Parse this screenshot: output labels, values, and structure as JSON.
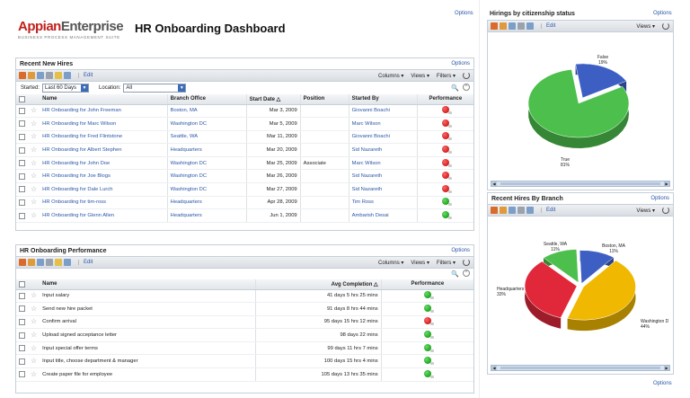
{
  "header": {
    "logo_main": "Appian",
    "logo_second": "Enterprise",
    "logo_sub": "BUSINESS PROCESS MANAGEMENT SUITE",
    "title": "HR Onboarding Dashboard",
    "options": "Options"
  },
  "hires": {
    "title": "Recent New Hires",
    "options": "Options",
    "edit": "Edit",
    "columns": "Columns ▾",
    "views": "Views ▾",
    "filters": "Filters ▾",
    "started_label": "Started:",
    "started_value": "Last 60 Days",
    "location_label": "Location:",
    "location_value": "All",
    "headers": [
      "Name",
      "Branch Office",
      "Start Date △",
      "Position",
      "Started By",
      "Performance"
    ],
    "rows": [
      {
        "name": "HR Onboarding for John Freeman",
        "office": "Boston, MA",
        "date": "Mar 3, 2009",
        "position": "",
        "by": "Giovanni Boachi",
        "perf": "red"
      },
      {
        "name": "HR Onboarding for Marc Wilson",
        "office": "Washington DC",
        "date": "Mar 5, 2009",
        "position": "",
        "by": "Marc Wilson",
        "perf": "red"
      },
      {
        "name": "HR Onboarding for Fred Flintstone",
        "office": "Seattle, WA",
        "date": "Mar 11, 2009",
        "position": "",
        "by": "Giovanni Boachi",
        "perf": "red"
      },
      {
        "name": "HR Onboarding for Albert Stephen",
        "office": "Headquarters",
        "date": "Mar 20, 2009",
        "position": "",
        "by": "Sid Nazareth",
        "perf": "red"
      },
      {
        "name": "HR Onboarding for John Doe",
        "office": "Washington DC",
        "date": "Mar 25, 2009",
        "position": "Associate",
        "by": "Marc Wilson",
        "perf": "red"
      },
      {
        "name": "HR Onboarding for Joe Blogs",
        "office": "Washington DC",
        "date": "Mar 26, 2009",
        "position": "",
        "by": "Sid Nazareth",
        "perf": "red"
      },
      {
        "name": "HR Onboarding for Dale Lurch",
        "office": "Washington DC",
        "date": "Mar 27, 2009",
        "position": "",
        "by": "Sid Nazareth",
        "perf": "red"
      },
      {
        "name": "HR Onboarding for tim-ross",
        "office": "Headquarters",
        "date": "Apr 28, 2009",
        "position": "",
        "by": "Tim Ross",
        "perf": "green"
      },
      {
        "name": "HR Onboarding for Glenn Allen",
        "office": "Headquarters",
        "date": "Jun 1, 2009",
        "position": "",
        "by": "Ambarish Desai",
        "perf": "green"
      }
    ]
  },
  "perf": {
    "title": "HR Onboarding Performance",
    "options": "Options",
    "edit": "Edit",
    "columns": "Columns ▾",
    "views": "Views ▾",
    "filters": "Filters ▾",
    "headers": [
      "Name",
      "Avg Completion △",
      "Performance"
    ],
    "rows": [
      {
        "name": "Input salary",
        "avg": "41 days 5 hrs 25 mins",
        "perf": "green"
      },
      {
        "name": "Send new hire packet",
        "avg": "91 days 8 hrs 44 mins",
        "perf": "green"
      },
      {
        "name": "Confirm arrival",
        "avg": "95 days 15 hrs 12 mins",
        "perf": "red"
      },
      {
        "name": "Upload signed acceptance letter",
        "avg": "98 days 22 mins",
        "perf": "green"
      },
      {
        "name": "Input special offer terms",
        "avg": "99 days 11 hrs 7 mins",
        "perf": "green"
      },
      {
        "name": "Input title, choose department & manager",
        "avg": "100 days 15 hrs 4 mins",
        "perf": "green"
      },
      {
        "name": "Create paper file for employee",
        "avg": "105 days 13 hrs 35 mins",
        "perf": "green"
      }
    ]
  },
  "citizenship": {
    "title": "Hirings by citizenship status",
    "options": "Options",
    "edit": "Edit",
    "views": "Views ▾",
    "chart_data": {
      "type": "pie",
      "slices": [
        {
          "label": "False",
          "pct": "19%",
          "value": 19,
          "color": "#3d5fc4"
        },
        {
          "label": "True",
          "pct": "81%",
          "value": 81,
          "color": "#4cbf4c"
        }
      ]
    }
  },
  "branch": {
    "title": "Recent Hires By Branch",
    "options": "Options",
    "edit": "Edit",
    "views": "Views ▾",
    "chart_data": {
      "type": "pie",
      "slices": [
        {
          "label": "Boston, MA",
          "pct": "11%",
          "value": 11,
          "color": "#3d5fc4"
        },
        {
          "label": "Washington D",
          "pct": "44%",
          "value": 44,
          "color": "#f0b800"
        },
        {
          "label": "Headquarters",
          "pct": "33%",
          "value": 33,
          "color": "#e0283a"
        },
        {
          "label": "Seattle, WA",
          "pct": "11%",
          "value": 11,
          "color": "#4cbf4c"
        }
      ]
    }
  },
  "bottom_options": "Options"
}
